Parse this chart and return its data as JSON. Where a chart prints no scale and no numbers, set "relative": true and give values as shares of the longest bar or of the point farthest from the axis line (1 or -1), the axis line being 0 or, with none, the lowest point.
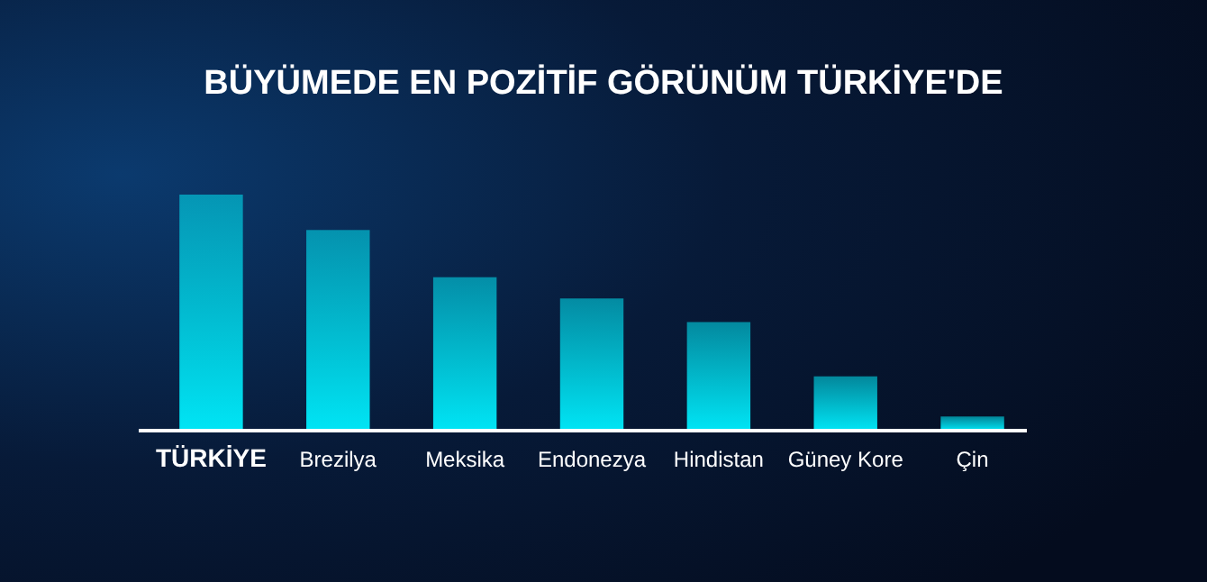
{
  "chart_data": {
    "type": "bar",
    "title": "BÜYÜMEDE EN POZİTİF GÖRÜNÜM TÜRKİYE'DE",
    "relative": true,
    "categories": [
      "TÜRKİYE",
      "Brezilya",
      "Meksika",
      "Endonezya",
      "Hindistan",
      "Güney Kore",
      "Çin"
    ],
    "values": [
      1,
      0.85,
      0.65,
      0.56,
      0.46,
      0.23,
      0.06
    ],
    "color": "#00e5f5"
  }
}
